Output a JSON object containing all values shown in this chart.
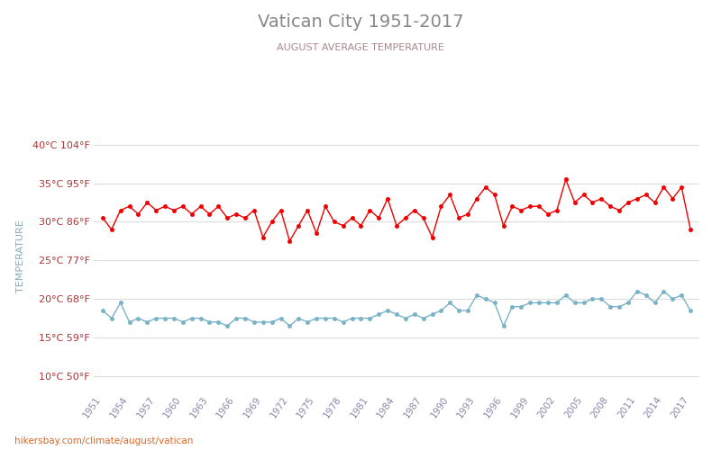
{
  "title": "Vatican City 1951-2017",
  "subtitle": "AUGUST AVERAGE TEMPERATURE",
  "ylabel": "TEMPERATURE",
  "watermark": "hikersbay.com/climate/august/vatican",
  "years": [
    1951,
    1952,
    1953,
    1954,
    1955,
    1956,
    1957,
    1958,
    1959,
    1960,
    1961,
    1962,
    1963,
    1964,
    1965,
    1966,
    1967,
    1968,
    1969,
    1970,
    1971,
    1972,
    1973,
    1974,
    1975,
    1976,
    1977,
    1978,
    1979,
    1980,
    1981,
    1982,
    1983,
    1984,
    1985,
    1986,
    1987,
    1988,
    1989,
    1990,
    1991,
    1992,
    1993,
    1994,
    1995,
    1996,
    1997,
    1998,
    1999,
    2000,
    2001,
    2002,
    2003,
    2004,
    2005,
    2006,
    2007,
    2008,
    2009,
    2010,
    2011,
    2012,
    2013,
    2014,
    2015,
    2016,
    2017
  ],
  "day_temps": [
    30.5,
    29.0,
    31.5,
    32.0,
    31.0,
    32.5,
    31.5,
    32.0,
    31.5,
    32.0,
    31.0,
    32.0,
    31.0,
    32.0,
    30.5,
    31.0,
    30.5,
    31.5,
    28.0,
    30.0,
    31.5,
    27.5,
    29.5,
    31.5,
    28.5,
    32.0,
    30.0,
    29.5,
    30.5,
    29.5,
    31.5,
    30.5,
    33.0,
    29.5,
    30.5,
    31.5,
    30.5,
    28.0,
    32.0,
    33.5,
    30.5,
    31.0,
    33.0,
    34.5,
    33.5,
    29.5,
    32.0,
    31.5,
    32.0,
    32.0,
    31.0,
    31.5,
    35.5,
    32.5,
    33.5,
    32.5,
    33.0,
    32.0,
    31.5,
    32.5,
    33.0,
    33.5,
    32.5,
    34.5,
    33.0,
    34.5,
    29.0
  ],
  "night_temps": [
    18.5,
    17.5,
    19.5,
    17.0,
    17.5,
    17.0,
    17.5,
    17.5,
    17.5,
    17.0,
    17.5,
    17.5,
    17.0,
    17.0,
    16.5,
    17.5,
    17.5,
    17.0,
    17.0,
    17.0,
    17.5,
    16.5,
    17.5,
    17.0,
    17.5,
    17.5,
    17.5,
    17.0,
    17.5,
    17.5,
    17.5,
    18.0,
    18.5,
    18.0,
    17.5,
    18.0,
    17.5,
    18.0,
    18.5,
    19.5,
    18.5,
    18.5,
    20.5,
    20.0,
    19.5,
    16.5,
    19.0,
    19.0,
    19.5,
    19.5,
    19.5,
    19.5,
    20.5,
    19.5,
    19.5,
    20.0,
    20.0,
    19.0,
    19.0,
    19.5,
    21.0,
    20.5,
    19.5,
    21.0,
    20.0,
    20.5,
    18.5
  ],
  "day_color": "#ee0000",
  "night_color": "#7ab3c8",
  "title_color": "#888888",
  "subtitle_color": "#aa8888",
  "tick_color": "#aa3333",
  "ylabel_color": "#8aaabb",
  "grid_color": "#dddddd",
  "background_color": "#ffffff",
  "yticks_c": [
    10,
    15,
    20,
    25,
    30,
    35,
    40
  ],
  "yticks_f": [
    50,
    59,
    68,
    77,
    86,
    95,
    104
  ],
  "ylim": [
    8,
    43
  ],
  "xlim_left": 1950.0,
  "xlim_right": 2018.0
}
